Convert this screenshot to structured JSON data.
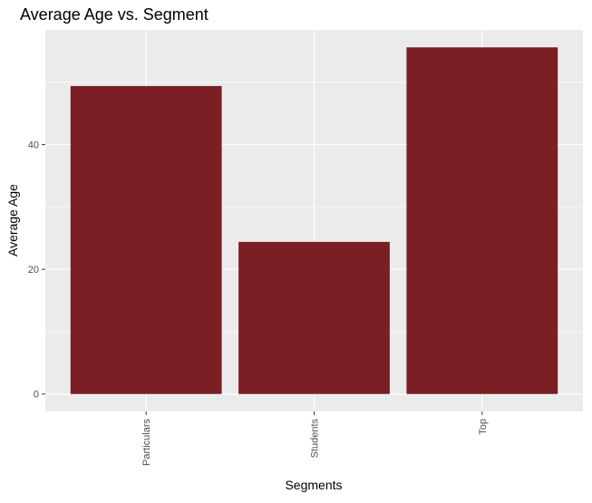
{
  "chart_data": {
    "type": "bar",
    "title": "Average Age vs. Segment",
    "xlabel": "Segments",
    "ylabel": "Average Age",
    "categories": [
      "Particulars",
      "Students",
      "Top"
    ],
    "values": [
      49.4,
      24.4,
      55.6
    ],
    "ylim": [
      -2.8,
      58.4
    ],
    "yticks": [
      0,
      20,
      40
    ],
    "ytick_labels": [
      "0",
      "20",
      "40"
    ],
    "grid": true,
    "legend": "none",
    "colors": {
      "bar": "#7b1f24",
      "panel": "#ebebeb",
      "gridline": "#ffffff",
      "background": "#ffffff"
    }
  }
}
